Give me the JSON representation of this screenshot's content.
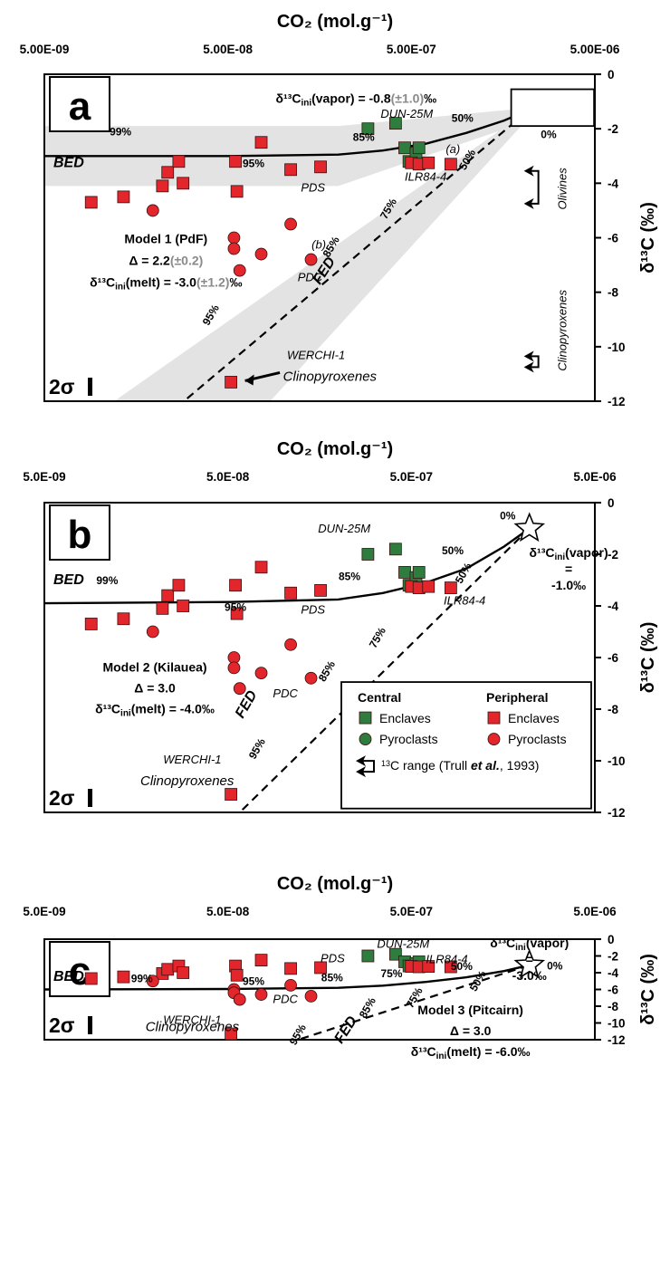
{
  "figure": {
    "x_axis_title": "CO₂ (mol.g⁻¹)",
    "y_axis_title": "δ¹³C (‰)"
  },
  "chart_data": [
    {
      "type": "scatter",
      "panel_label": "a",
      "x_scale": "log",
      "xlim": [
        5e-09,
        5e-06
      ],
      "ylim": [
        -12,
        0
      ],
      "xtick_labels": [
        "5.00E-09",
        "5.00E-08",
        "5.00E-07",
        "5.00E-06"
      ],
      "ytick_labels": [
        "0",
        "-2",
        "-4",
        "-6",
        "-8",
        "-10",
        "-12"
      ],
      "model_text": [
        "Model 1 (PdF)",
        "Δ = 2.2",
        "(±0.2)",
        "δ¹³C",
        "ini",
        "(melt) = -3.0",
        "(±1.2)",
        "‰"
      ],
      "vapor_text": [
        "δ¹³C",
        "ini",
        "(vapor) = -0.8",
        "(±1.0)",
        "‰"
      ],
      "vapor_box_label": "0%",
      "sigma_label": "2σ",
      "sample_labels": {
        "dun": "DUN-25M",
        "ilr": "ILR84-4",
        "pds": "PDS",
        "pdc": "PDC",
        "werchi": "WERCHI-1",
        "cpx": "Clinopyroxenes",
        "ann_a": "(a)",
        "ann_b": "(b)"
      },
      "side_labels": {
        "olivines": "Olivines",
        "cpx": "Clinopyroxenes"
      },
      "bed": {
        "name": "BED",
        "x": [
          5e-09,
          5e-08,
          2e-07,
          3.5e-07,
          6e-07,
          1e-06,
          1.6e-06,
          2.2e-06
        ],
        "y": [
          -3.0,
          -3.0,
          -2.95,
          -2.8,
          -2.55,
          -2.15,
          -1.7,
          -1.3
        ],
        "pct_labels": [
          "99%",
          "95%",
          "85%",
          "50%"
        ]
      },
      "fed": {
        "name": "FED",
        "x": [
          3e-08,
          2.2e-06
        ],
        "y": [
          -11.9,
          -1.3
        ],
        "pct_labels": [
          "95%",
          "85%",
          "75%",
          "50%"
        ]
      },
      "series": [
        {
          "group": "Central",
          "type": "Enclaves",
          "marker": "square",
          "color": "#2e7d3e",
          "x": [
            2.9e-07,
            4.1e-07,
            4.6e-07,
            4.85e-07,
            5.3e-07,
            5.5e-07
          ],
          "y": [
            -2.0,
            -1.8,
            -2.7,
            -3.2,
            -2.9,
            -2.7
          ]
        },
        {
          "group": "Peripheral",
          "type": "Enclaves",
          "marker": "square",
          "color": "#e3262c",
          "x": [
            9e-09,
            1.35e-08,
            2.2e-08,
            2.35e-08,
            2.7e-08,
            2.85e-08,
            5.5e-08,
            5.6e-08,
            7.6e-08,
            1.1e-07,
            1.6e-07,
            5e-07,
            5.5e-07,
            6.2e-07,
            8.2e-07,
            5.2e-08
          ],
          "y": [
            -4.7,
            -4.5,
            -4.1,
            -3.6,
            -3.2,
            -4.0,
            -3.2,
            -4.3,
            -2.5,
            -3.5,
            -3.4,
            -3.25,
            -3.3,
            -3.25,
            -3.3,
            -11.3
          ]
        },
        {
          "group": "Peripheral",
          "type": "Pyroclasts",
          "marker": "circle",
          "color": "#e3262c",
          "x": [
            1.95e-08,
            5.4e-08,
            5.4e-08,
            5.8e-08,
            7.6e-08,
            1.1e-07,
            1.42e-07
          ],
          "y": [
            -5.0,
            -6.0,
            -6.4,
            -7.2,
            -6.6,
            -5.5,
            -6.8
          ]
        }
      ]
    },
    {
      "type": "scatter",
      "panel_label": "b",
      "x_scale": "log",
      "xlim": [
        5e-09,
        5e-06
      ],
      "ylim": [
        -12,
        0
      ],
      "xtick_labels": [
        "5.0E-09",
        "5.0E-08",
        "5.0E-07",
        "5.0E-06"
      ],
      "ytick_labels": [
        "0",
        "-2",
        "-4",
        "-6",
        "-8",
        "-10",
        "-12"
      ],
      "model_text": [
        "Model 2 (Kilauea)",
        "Δ = 3.0",
        "δ¹³C",
        "ini",
        "(melt) = -4.0‰"
      ],
      "vapor_text": [
        "δ¹³C",
        "ini",
        "(vapor)",
        "=",
        "-1.0‰"
      ],
      "star_label": "0%",
      "sigma_label": "2σ",
      "sample_labels": {
        "dun": "DUN-25M",
        "ilr": "ILR84-4",
        "pds": "PDS",
        "pdc": "PDC",
        "werchi": "WERCHI-1",
        "cpx": "Clinopyroxenes"
      },
      "legend": {
        "central": "Central",
        "peripheral": "Peripheral",
        "enclaves": "Enclaves",
        "pyroclasts": "Pyroclasts",
        "range_pre": "C range (Trull ",
        "range_sup": "13",
        "range_em": "et al.",
        "range_post": ", 1993)"
      },
      "bed": {
        "name": "BED",
        "x": [
          5e-09,
          5e-08,
          2e-07,
          3.5e-07,
          6e-07,
          1e-06,
          1.6e-06,
          2.2e-06
        ],
        "y": [
          -3.9,
          -3.85,
          -3.75,
          -3.5,
          -3.1,
          -2.55,
          -1.7,
          -1.0
        ],
        "pct_labels": [
          "99%",
          "95%",
          "85%",
          "50%"
        ]
      },
      "fed": {
        "name": "FED",
        "x": [
          6e-08,
          2.2e-06
        ],
        "y": [
          -11.9,
          -1.0
        ],
        "pct_labels": [
          "95%",
          "85%",
          "75%",
          "50%"
        ]
      },
      "series": [
        {
          "group": "Central",
          "type": "Enclaves",
          "marker": "square",
          "color": "#2e7d3e",
          "x": [
            2.9e-07,
            4.1e-07,
            4.6e-07,
            4.85e-07,
            5.3e-07,
            5.5e-07
          ],
          "y": [
            -2.0,
            -1.8,
            -2.7,
            -3.2,
            -2.9,
            -2.7
          ]
        },
        {
          "group": "Peripheral",
          "type": "Enclaves",
          "marker": "square",
          "color": "#e3262c",
          "x": [
            9e-09,
            1.35e-08,
            2.2e-08,
            2.35e-08,
            2.7e-08,
            2.85e-08,
            5.5e-08,
            5.6e-08,
            7.6e-08,
            1.1e-07,
            1.6e-07,
            5e-07,
            5.5e-07,
            6.2e-07,
            8.2e-07,
            5.2e-08
          ],
          "y": [
            -4.7,
            -4.5,
            -4.1,
            -3.6,
            -3.2,
            -4.0,
            -3.2,
            -4.3,
            -2.5,
            -3.5,
            -3.4,
            -3.25,
            -3.3,
            -3.25,
            -3.3,
            -11.3
          ]
        },
        {
          "group": "Peripheral",
          "type": "Pyroclasts",
          "marker": "circle",
          "color": "#e3262c",
          "x": [
            1.95e-08,
            5.4e-08,
            5.4e-08,
            5.8e-08,
            7.6e-08,
            1.1e-07,
            1.42e-07
          ],
          "y": [
            -5.0,
            -6.0,
            -6.4,
            -7.2,
            -6.6,
            -5.5,
            -6.8
          ]
        }
      ]
    },
    {
      "type": "scatter",
      "panel_label": "c",
      "x_scale": "log",
      "xlim": [
        5e-09,
        5e-06
      ],
      "ylim": [
        -12,
        0
      ],
      "xtick_labels": [
        "5.0E-09",
        "5.0E-08",
        "5.0E-07",
        "5.0E-06"
      ],
      "ytick_labels": [
        "0",
        "-2",
        "-4",
        "-6",
        "-8",
        "-10",
        "-12"
      ],
      "model_text": [
        "Model 3 (Pitcairn)",
        "Δ = 3.0",
        "δ¹³C",
        "ini",
        "(melt) = -6.0‰"
      ],
      "vapor_text": [
        "δ¹³C",
        "ini",
        "(vapor)",
        "=",
        "-3.0‰"
      ],
      "star_label": "0%",
      "sigma_label": "2σ",
      "sample_labels": {
        "dun": "DUN-25M",
        "ilr": "ILR84-4",
        "pds": "PDS",
        "pdc": "PDC",
        "werchi": "WERCHI-1",
        "cpx": "Clinopyroxenes"
      },
      "bed": {
        "name": "BED",
        "x": [
          5e-09,
          5e-08,
          2e-07,
          3.5e-07,
          6e-07,
          1e-06,
          1.6e-06,
          2.2e-06
        ],
        "y": [
          -6.0,
          -5.95,
          -5.8,
          -5.55,
          -5.1,
          -4.55,
          -3.8,
          -3.1
        ],
        "pct_labels": [
          "99%",
          "95%",
          "85%",
          "75%",
          "50%"
        ]
      },
      "fed": {
        "name": "FED",
        "x": [
          1.25e-07,
          2.2e-06
        ],
        "y": [
          -11.9,
          -3.1
        ],
        "pct_labels": [
          "95%",
          "85%",
          "75%",
          "50%"
        ]
      },
      "series": [
        {
          "group": "Central",
          "type": "Enclaves",
          "marker": "square",
          "color": "#2e7d3e",
          "x": [
            2.9e-07,
            4.1e-07,
            4.6e-07,
            4.85e-07,
            5.3e-07,
            5.5e-07
          ],
          "y": [
            -2.0,
            -1.8,
            -2.7,
            -3.2,
            -2.9,
            -2.7
          ]
        },
        {
          "group": "Peripheral",
          "type": "Enclaves",
          "marker": "square",
          "color": "#e3262c",
          "x": [
            9e-09,
            1.35e-08,
            2.2e-08,
            2.35e-08,
            2.7e-08,
            2.85e-08,
            5.5e-08,
            5.6e-08,
            7.6e-08,
            1.1e-07,
            1.6e-07,
            5e-07,
            5.5e-07,
            6.2e-07,
            8.2e-07,
            5.2e-08
          ],
          "y": [
            -4.7,
            -4.5,
            -4.1,
            -3.6,
            -3.2,
            -4.0,
            -3.2,
            -4.3,
            -2.5,
            -3.5,
            -3.4,
            -3.25,
            -3.3,
            -3.25,
            -3.3,
            -11.3
          ]
        },
        {
          "group": "Peripheral",
          "type": "Pyroclasts",
          "marker": "circle",
          "color": "#e3262c",
          "x": [
            1.95e-08,
            5.4e-08,
            5.4e-08,
            5.8e-08,
            7.6e-08,
            1.1e-07,
            1.42e-07
          ],
          "y": [
            -5.0,
            -6.0,
            -6.4,
            -7.2,
            -6.6,
            -5.5,
            -6.8
          ]
        }
      ]
    }
  ]
}
